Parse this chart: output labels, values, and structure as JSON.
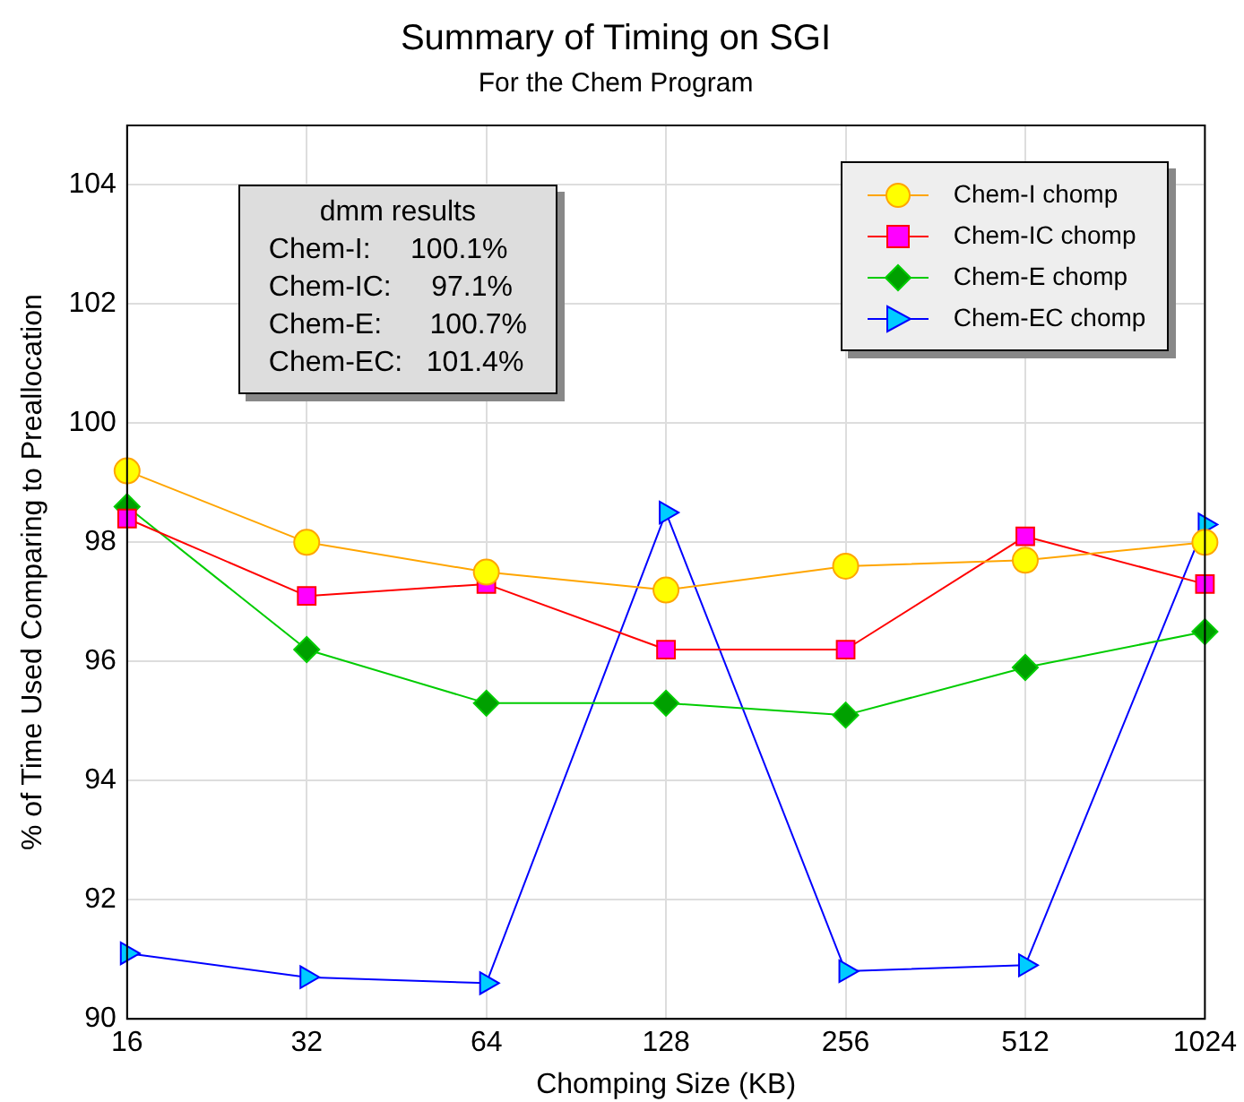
{
  "chart_data": {
    "type": "line",
    "title": "Summary of Timing on SGI",
    "subtitle": "For the Chem Program",
    "xlabel": "Chomping Size (KB)",
    "ylabel": "% of Time Used Comparing to Preallocation",
    "categories": [
      "16",
      "32",
      "64",
      "128",
      "256",
      "512",
      "1024"
    ],
    "series": [
      {
        "name": "Chem-I chomp",
        "color": "#ffa500",
        "colors": [
          "#ffff00",
          "#ffff00",
          "#ffff00",
          "#ffff00",
          "#ffff00",
          "#ffff00",
          "#ffff00"
        ],
        "marker": "circle",
        "values": [
          99.2,
          98.0,
          97.5,
          97.2,
          97.6,
          97.7,
          98.0
        ]
      },
      {
        "name": "Chem-IC chomp",
        "color": "#ff0000",
        "colors": [
          "#ff00ff",
          "#ff00ff",
          "#ff00ff",
          "#ff00ff",
          "#ff00ff",
          "#ff00ff",
          "#ff00ff"
        ],
        "marker": "square",
        "values": [
          98.4,
          97.1,
          97.3,
          96.2,
          96.2,
          98.1,
          97.3
        ]
      },
      {
        "name": "Chem-E chomp",
        "color": "#00cc00",
        "colors": [
          "#00a000",
          "#00a000",
          "#00a000",
          "#00a000",
          "#00a000",
          "#00a000",
          "#00a000"
        ],
        "marker": "diamond",
        "values": [
          98.6,
          96.2,
          95.3,
          95.3,
          95.1,
          95.9,
          96.5
        ]
      },
      {
        "name": "Chem-EC chomp",
        "color": "#0000ff",
        "colors": [
          "#00ccff",
          "#00ccff",
          "#00ccff",
          "#00ccff",
          "#00ccff",
          "#00ccff",
          "#00ccff"
        ],
        "marker": "triangle",
        "values": [
          91.1,
          90.7,
          90.6,
          98.5,
          90.8,
          90.9,
          98.3
        ]
      }
    ],
    "ylim": [
      90,
      105
    ],
    "yticks": [
      90,
      92,
      94,
      96,
      98,
      100,
      102,
      104
    ],
    "grid": true,
    "legend": "top right",
    "annotations": [
      "dmm results",
      "Chem-I:     100.1%",
      "Chem-IC:     97.1%",
      "Chem-E:      100.7%",
      "Chem-EC:   101.4%"
    ]
  }
}
